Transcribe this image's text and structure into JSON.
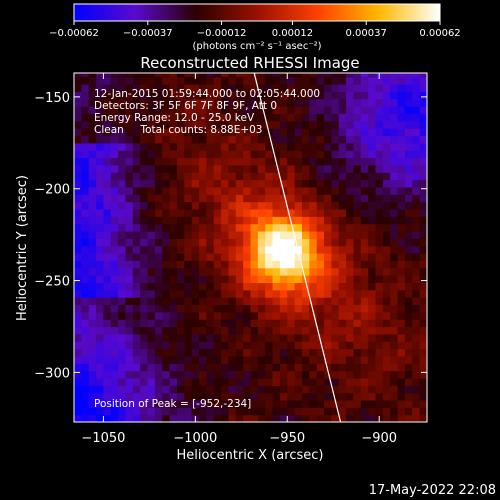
{
  "chart_data": {
    "type": "heatmap",
    "title": "Reconstructed RHESSI Image",
    "xlabel": "Heliocentric X (arcsec)",
    "ylabel": "Heliocentric Y (arcsec)",
    "xlim": [
      -1066,
      -874
    ],
    "ylim": [
      -327,
      -137
    ],
    "x_ticks": [
      -1050,
      -1000,
      -950,
      -900
    ],
    "x_tick_labels": [
      "−1050",
      "−1000",
      "−950",
      "−900"
    ],
    "y_ticks": [
      -150,
      -200,
      -250,
      -300
    ],
    "y_tick_labels": [
      "−150",
      "−200",
      "−250",
      "−300"
    ],
    "colorbar": {
      "min": -0.00062,
      "max": 0.00062,
      "ticks": [
        -0.00062,
        -0.00037,
        -0.00012,
        0.00012,
        0.00037,
        0.00062
      ],
      "tick_labels": [
        "−0.00062",
        "−0.00037",
        "−0.00012",
        "0.00012",
        "0.00037",
        "0.00062"
      ],
      "unit_label": "(photons cm⁻² s⁻¹ asec⁻²)",
      "colors": [
        "#0000ff",
        "#5a0acc",
        "#2a0000",
        "#9a1000",
        "#ff4000",
        "#ffb800",
        "#ffffff"
      ]
    },
    "peak_position": [
      -952,
      -234
    ],
    "limb_line": [
      [
        -968,
        -137
      ],
      [
        -921,
        -327
      ]
    ],
    "annotations": {
      "time_range": "12-Jan-2015 01:59:44.000 to 02:05:44.000",
      "detectors": "Detectors: 3F 5F 6F 7F 8F 9F, Att 0",
      "energy_range": "Energy Range: 12.0 - 25.0 keV",
      "algorithm": "Clean     Total counts: 8.88E+03",
      "peak_text": "Position of Peak = [-952,-234]"
    },
    "grid": false
  },
  "footer": {
    "date_stamp": "17-May-2022 22:08"
  }
}
